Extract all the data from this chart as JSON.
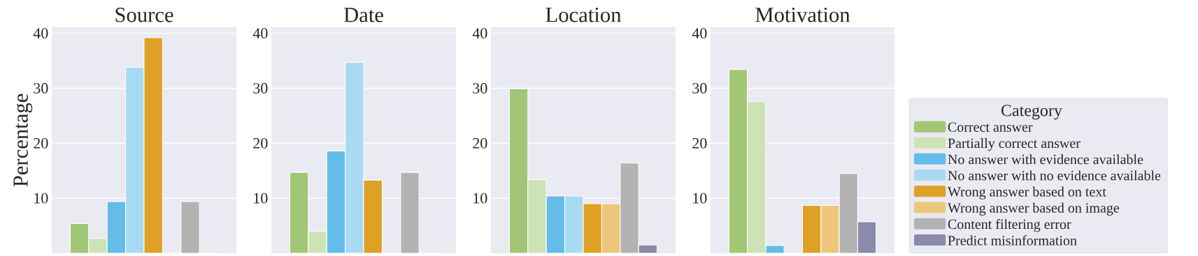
{
  "chart_data": [
    {
      "type": "bar",
      "title": "Source",
      "ylabel": "Percentage",
      "categories": [
        null
      ],
      "ylim": [
        0,
        41.1
      ],
      "yticks": [
        10,
        20,
        30,
        40
      ],
      "grid": "y",
      "series": [
        {
          "color": "#a1c675",
          "values": [
            5.4
          ]
        },
        {
          "color": "#cde3b5",
          "values": [
            2.7
          ]
        },
        {
          "color": "#64bce9",
          "values": [
            9.4
          ]
        },
        {
          "color": "#a8dbf2",
          "values": [
            33.8
          ]
        },
        {
          "color": "#dea025",
          "values": [
            39.2
          ]
        },
        {
          "color": "#ecc77b",
          "values": [
            0
          ]
        },
        {
          "color": "#b3b3b3",
          "values": [
            9.4
          ]
        },
        {
          "color": "#8c8aab",
          "values": [
            0
          ]
        }
      ]
    },
    {
      "type": "bar",
      "title": "Date",
      "categories": [
        null
      ],
      "ylim": [
        0,
        41.1
      ],
      "yticks": [
        10,
        20,
        30,
        40
      ],
      "grid": "y",
      "series": [
        {
          "color": "#a1c675",
          "values": [
            14.7
          ]
        },
        {
          "color": "#cde3b5",
          "values": [
            4.0
          ]
        },
        {
          "color": "#64bce9",
          "values": [
            18.6
          ]
        },
        {
          "color": "#a8dbf2",
          "values": [
            34.7
          ]
        },
        {
          "color": "#dea025",
          "values": [
            13.3
          ]
        },
        {
          "color": "#ecc77b",
          "values": [
            0
          ]
        },
        {
          "color": "#b3b3b3",
          "values": [
            14.7
          ]
        },
        {
          "color": "#8c8aab",
          "values": [
            0
          ]
        }
      ]
    },
    {
      "type": "bar",
      "title": "Location",
      "categories": [
        null
      ],
      "ylim": [
        0,
        41.1
      ],
      "yticks": [
        10,
        20,
        30,
        40
      ],
      "grid": "y",
      "series": [
        {
          "color": "#a1c675",
          "values": [
            29.9
          ]
        },
        {
          "color": "#cde3b5",
          "values": [
            13.4
          ]
        },
        {
          "color": "#64bce9",
          "values": [
            10.4
          ]
        },
        {
          "color": "#a8dbf2",
          "values": [
            10.4
          ]
        },
        {
          "color": "#dea025",
          "values": [
            9.0
          ]
        },
        {
          "color": "#ecc77b",
          "values": [
            9.0
          ]
        },
        {
          "color": "#b3b3b3",
          "values": [
            16.4
          ]
        },
        {
          "color": "#8c8aab",
          "values": [
            1.5
          ]
        }
      ]
    },
    {
      "type": "bar",
      "title": "Motivation",
      "categories": [
        null
      ],
      "ylim": [
        0,
        41.1
      ],
      "yticks": [
        10,
        20,
        30,
        40
      ],
      "grid": "y",
      "legend": "right",
      "legend_title": "Category",
      "series": [
        {
          "name": "Correct answer",
          "color": "#a1c675",
          "values": [
            33.4
          ]
        },
        {
          "name": "Partially correct answer",
          "color": "#cde3b5",
          "values": [
            27.6
          ]
        },
        {
          "name": "No answer with evidence available",
          "color": "#64bce9",
          "values": [
            1.4
          ]
        },
        {
          "name": "No answer with no evidence available",
          "color": "#a8dbf2",
          "values": [
            0
          ]
        },
        {
          "name": "Wrong answer based on text",
          "color": "#dea025",
          "values": [
            8.7
          ]
        },
        {
          "name": "Wrong answer based on image",
          "color": "#ecc77b",
          "values": [
            8.7
          ]
        },
        {
          "name": "Content filtering error",
          "color": "#b3b3b3",
          "values": [
            14.5
          ]
        },
        {
          "name": "Predict misinformation",
          "color": "#8c8aab",
          "values": [
            5.7
          ]
        }
      ]
    }
  ]
}
